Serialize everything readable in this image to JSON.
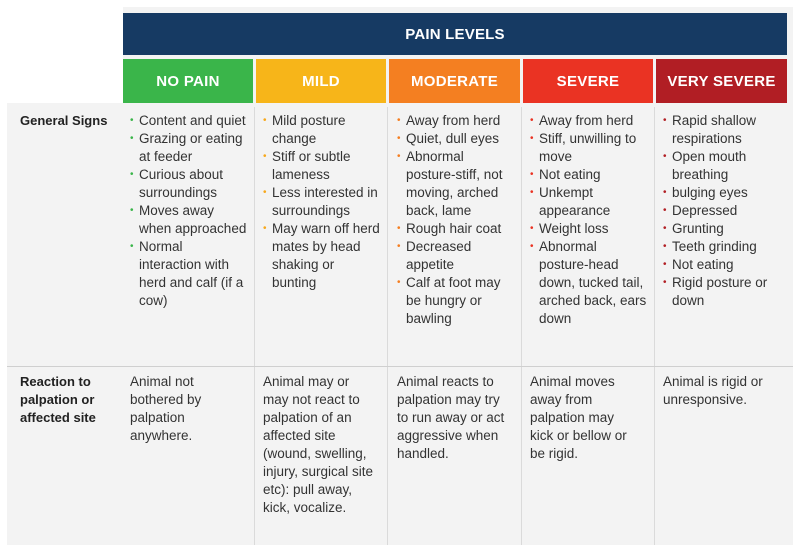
{
  "header": {
    "title": "PAIN LEVELS"
  },
  "levels": [
    {
      "label": "NO PAIN",
      "color": "#3ab54a"
    },
    {
      "label": "MILD",
      "color": "#f7b519"
    },
    {
      "label": "MODERATE",
      "color": "#f47f21"
    },
    {
      "label": "SEVERE",
      "color": "#ea3323"
    },
    {
      "label": "VERY SEVERE",
      "color": "#b11e24"
    }
  ],
  "rows": {
    "general": {
      "label": "General Signs",
      "cells": [
        [
          "Content and quiet",
          "Grazing or eating at feeder",
          "Curious about surroundings",
          "Moves away when approached",
          "Normal interaction with herd and calf (if a cow)"
        ],
        [
          "Mild posture change",
          "Stiff or subtle lameness",
          "Less interested in surroundings",
          "May warn off herd mates by head shaking or bunting"
        ],
        [
          "Away from herd",
          "Quiet, dull eyes",
          "Abnormal posture-stiff, not moving, arched back, lame",
          "Rough hair coat",
          "Decreased appetite",
          "Calf at foot may be hungry or bawling"
        ],
        [
          "Away from herd",
          "Stiff, unwilling to move",
          "Not eating",
          "Unkempt appearance",
          "Weight loss",
          "Abnormal posture-head down, tucked tail, arched back, ears down"
        ],
        [
          "Rapid shallow respirations",
          "Open mouth breathing",
          "bulging eyes",
          "Depressed",
          "Grunting",
          "Teeth grinding",
          "Not eating",
          "Rigid posture or down"
        ]
      ]
    },
    "reaction": {
      "label": "Reaction to palpation or affected site",
      "cells": [
        "Animal not bothered by palpation anywhere.",
        "Animal may or may not react to palpation of an affected site (wound, swelling, injury, surgical site etc): pull away, kick, vocalize.",
        "Animal reacts to palpation may try to run away or act aggressive when handled.",
        "Animal moves away from palpation may kick or bellow or be rigid.",
        "Animal is rigid or unresponsive."
      ]
    }
  }
}
